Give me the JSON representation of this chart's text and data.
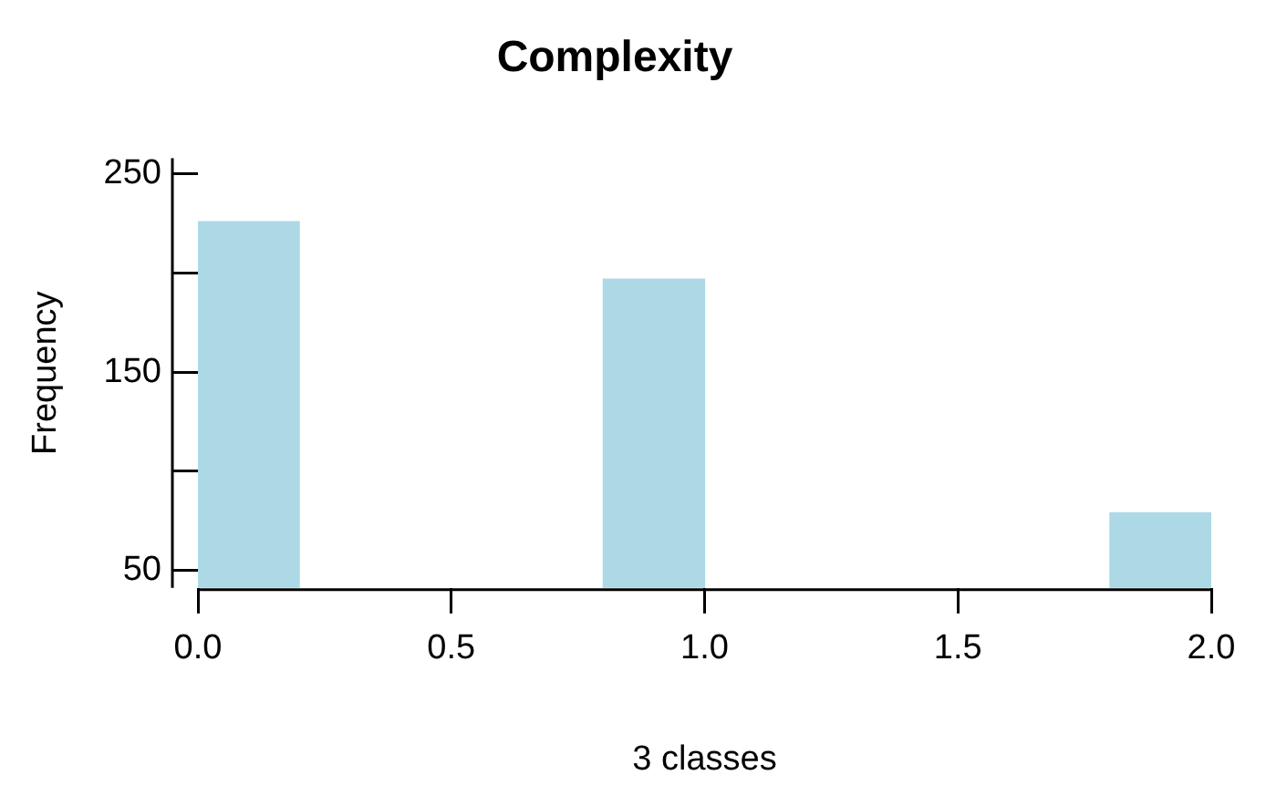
{
  "chart_data": {
    "type": "histogram",
    "title": "Complexity",
    "xlabel": "3 classes",
    "ylabel": "Frequency",
    "bins": [
      0,
      0.2,
      0.4,
      0.6,
      0.8,
      1.0,
      1.2,
      1.4,
      1.6,
      1.8,
      2.0
    ],
    "values": [
      226,
      null,
      null,
      null,
      197,
      null,
      null,
      null,
      null,
      79
    ],
    "color": "#add8e6",
    "xlim": [
      0,
      2
    ],
    "xticks": [
      {
        "value": 0,
        "label": "0.0"
      },
      {
        "value": 0.5,
        "label": "0.5"
      },
      {
        "value": 1,
        "label": "1.0"
      },
      {
        "value": 1.5,
        "label": "1.5"
      },
      {
        "value": 2,
        "label": "2.0"
      }
    ],
    "ylim": [
      41,
      258
    ],
    "yticks": [
      50,
      {
        "value": 100,
        "label": null
      },
      150,
      {
        "value": 200,
        "label": null
      },
      250
    ],
    "grid": false,
    "legend": false
  }
}
